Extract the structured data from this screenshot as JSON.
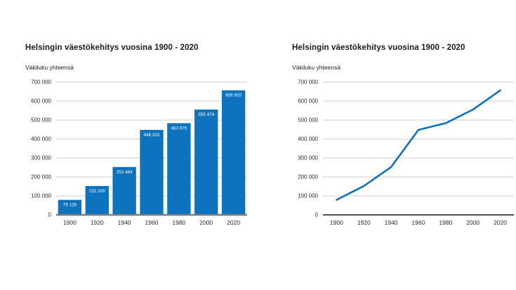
{
  "chart_data": [
    {
      "type": "bar",
      "title": "Helsingin väestökehitys vuosina 1900 - 2020",
      "ylabel": "Väkiluku yhteensä",
      "xlabel": "",
      "categories": [
        "1900",
        "1920",
        "1940",
        "1960",
        "1980",
        "2000",
        "2020"
      ],
      "values": [
        79126,
        152200,
        252484,
        448315,
        483675,
        555474,
        656920
      ],
      "value_labels": [
        "79 126",
        "152 200",
        "252 484",
        "448 315",
        "483 675",
        "555 474",
        "656 920"
      ],
      "ytick_labels": [
        "0",
        "100 000",
        "200 000",
        "300 000",
        "400 000",
        "500 000",
        "600 000",
        "700 000"
      ],
      "ylim": [
        0,
        700000
      ],
      "grid": true,
      "legend": "none",
      "color": "#0e73be",
      "grid_color": "#cccccc",
      "axis_color": "#7d7d7d",
      "axis_width": 2.4,
      "tick_color": "#2b2b2b"
    },
    {
      "type": "line",
      "title": "Helsingin väestökehitys vuosina 1900 - 2020",
      "ylabel": "Väkiluku yhteensä",
      "xlabel": "",
      "categories": [
        "1900",
        "1920",
        "1940",
        "1960",
        "1980",
        "2000",
        "2020"
      ],
      "values": [
        79126,
        152200,
        252484,
        448315,
        483675,
        555474,
        656920
      ],
      "ytick_labels": [
        "0",
        "100 000",
        "200 000",
        "300 000",
        "400 000",
        "500 000",
        "600 000",
        "700 000"
      ],
      "ylim": [
        0,
        700000
      ],
      "grid": true,
      "legend": "none",
      "color": "#0e73be",
      "grid_color": "#cccccc",
      "axis_color": "#1a1a1a",
      "axis_width": 1.6,
      "tick_color": "#2b2b2b"
    }
  ]
}
